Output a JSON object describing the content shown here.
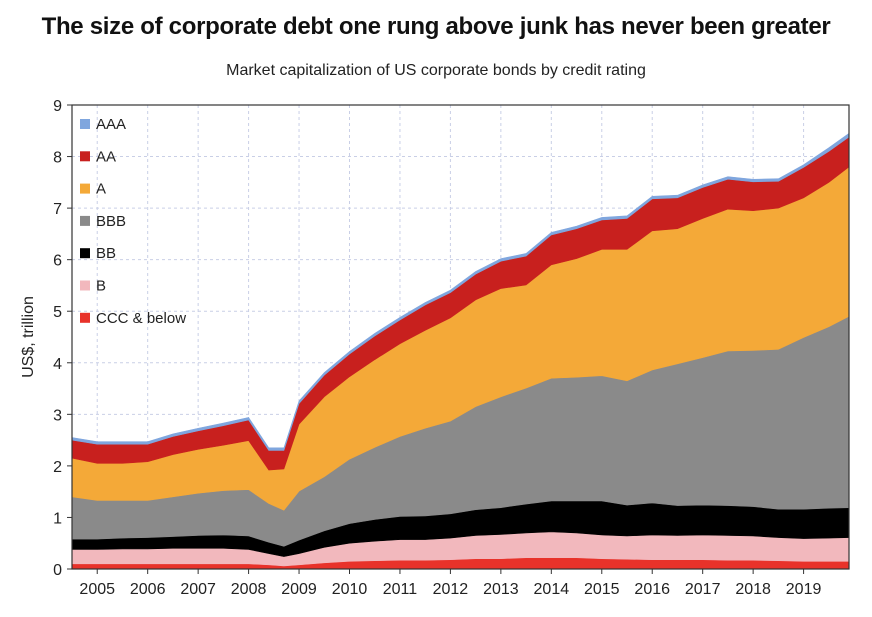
{
  "chart_data": {
    "type": "area",
    "title": "The size of corporate debt one rung above junk has never been greater",
    "subtitle": "Market capitalization of US corporate bonds by credit rating",
    "xlabel": "",
    "ylabel": "US$, trillion",
    "ylim": [
      0,
      9
    ],
    "xlim": [
      2004.5,
      2019.9
    ],
    "yticks": [
      "0",
      "1",
      "2",
      "3",
      "4",
      "5",
      "6",
      "7",
      "8",
      "9"
    ],
    "xticks": [
      {
        "label": "2005",
        "x": 2005.0
      },
      {
        "label": "2006",
        "x": 2006.0
      },
      {
        "label": "2007",
        "x": 2007.0
      },
      {
        "label": "2008",
        "x": 2008.0
      },
      {
        "label": "2009",
        "x": 2009.0
      },
      {
        "label": "2010",
        "x": 2010.0
      },
      {
        "label": "2011",
        "x": 2011.0
      },
      {
        "label": "2012",
        "x": 2012.0
      },
      {
        "label": "2013",
        "x": 2013.0
      },
      {
        "label": "2014",
        "x": 2014.0
      },
      {
        "label": "2015",
        "x": 2015.0
      },
      {
        "label": "2016",
        "x": 2016.0
      },
      {
        "label": "2017",
        "x": 2017.0
      },
      {
        "label": "2018",
        "x": 2018.0
      },
      {
        "label": "2019",
        "x": 2019.0
      }
    ],
    "grid": true,
    "stacked": true,
    "legend_position": "top-left",
    "x": [
      2004.5,
      2005.0,
      2005.5,
      2006.0,
      2006.5,
      2007.0,
      2007.5,
      2008.0,
      2008.4,
      2008.7,
      2009.0,
      2009.5,
      2010.0,
      2010.5,
      2011.0,
      2011.5,
      2012.0,
      2012.5,
      2013.0,
      2013.5,
      2014.0,
      2014.5,
      2015.0,
      2015.5,
      2016.0,
      2016.5,
      2017.0,
      2017.5,
      2018.0,
      2018.5,
      2019.0,
      2019.5,
      2019.9
    ],
    "series": [
      {
        "name": "CCC & below",
        "color": "#e8322a",
        "values": [
          0.1,
          0.1,
          0.1,
          0.1,
          0.1,
          0.1,
          0.1,
          0.1,
          0.08,
          0.06,
          0.08,
          0.12,
          0.15,
          0.16,
          0.17,
          0.17,
          0.18,
          0.2,
          0.2,
          0.22,
          0.22,
          0.22,
          0.2,
          0.19,
          0.18,
          0.18,
          0.18,
          0.17,
          0.17,
          0.16,
          0.15,
          0.15,
          0.15
        ]
      },
      {
        "name": "B",
        "color": "#f2b8bd",
        "values": [
          0.28,
          0.28,
          0.29,
          0.29,
          0.3,
          0.3,
          0.3,
          0.28,
          0.22,
          0.18,
          0.22,
          0.3,
          0.35,
          0.38,
          0.4,
          0.4,
          0.42,
          0.45,
          0.47,
          0.48,
          0.5,
          0.48,
          0.46,
          0.45,
          0.48,
          0.47,
          0.48,
          0.48,
          0.47,
          0.45,
          0.44,
          0.45,
          0.46
        ]
      },
      {
        "name": "BB",
        "color": "#000000",
        "values": [
          0.2,
          0.2,
          0.21,
          0.22,
          0.23,
          0.25,
          0.26,
          0.26,
          0.22,
          0.2,
          0.26,
          0.32,
          0.38,
          0.42,
          0.45,
          0.46,
          0.47,
          0.5,
          0.52,
          0.56,
          0.6,
          0.62,
          0.66,
          0.6,
          0.62,
          0.58,
          0.58,
          0.58,
          0.57,
          0.55,
          0.57,
          0.58,
          0.58
        ]
      },
      {
        "name": "BBB",
        "color": "#8a8a8a",
        "values": [
          0.82,
          0.75,
          0.73,
          0.72,
          0.77,
          0.82,
          0.86,
          0.9,
          0.75,
          0.7,
          0.95,
          1.05,
          1.25,
          1.4,
          1.55,
          1.7,
          1.8,
          2.0,
          2.15,
          2.25,
          2.38,
          2.4,
          2.43,
          2.41,
          2.58,
          2.75,
          2.86,
          3.0,
          3.03,
          3.1,
          3.33,
          3.52,
          3.71
        ]
      },
      {
        "name": "A",
        "color": "#f4a938",
        "values": [
          0.75,
          0.72,
          0.72,
          0.75,
          0.82,
          0.85,
          0.88,
          0.95,
          0.65,
          0.8,
          1.3,
          1.55,
          1.6,
          1.7,
          1.8,
          1.9,
          2.0,
          2.07,
          2.1,
          2.0,
          2.2,
          2.3,
          2.45,
          2.55,
          2.7,
          2.62,
          2.7,
          2.75,
          2.71,
          2.74,
          2.71,
          2.8,
          2.9
        ]
      },
      {
        "name": "AA",
        "color": "#c8201e",
        "values": [
          0.35,
          0.37,
          0.37,
          0.34,
          0.35,
          0.36,
          0.38,
          0.4,
          0.38,
          0.36,
          0.4,
          0.42,
          0.44,
          0.46,
          0.46,
          0.49,
          0.49,
          0.5,
          0.53,
          0.56,
          0.58,
          0.58,
          0.57,
          0.6,
          0.62,
          0.6,
          0.6,
          0.58,
          0.56,
          0.52,
          0.59,
          0.6,
          0.58
        ]
      },
      {
        "name": "AAA",
        "color": "#7fa6de",
        "values": [
          0.05,
          0.05,
          0.05,
          0.05,
          0.05,
          0.05,
          0.05,
          0.05,
          0.05,
          0.05,
          0.05,
          0.05,
          0.05,
          0.05,
          0.05,
          0.05,
          0.05,
          0.05,
          0.05,
          0.05,
          0.05,
          0.05,
          0.05,
          0.05,
          0.05,
          0.05,
          0.05,
          0.05,
          0.05,
          0.05,
          0.05,
          0.07,
          0.07
        ]
      }
    ],
    "legend_order": [
      "AAA",
      "AA",
      "A",
      "BBB",
      "BB",
      "B",
      "CCC & below"
    ]
  }
}
